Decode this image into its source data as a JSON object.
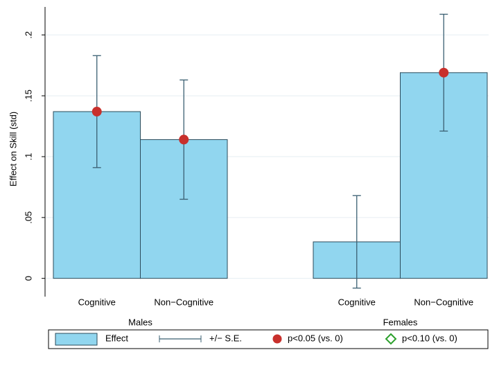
{
  "chart_data": {
    "type": "bar",
    "ylabel": "Effect on Skill (std)",
    "ylim": [
      -0.015,
      0.223
    ],
    "yticks": [
      0,
      {
        "value": 0.05,
        "label": ".05"
      },
      {
        "value": 0.1,
        "label": ".1"
      },
      {
        "value": 0.15,
        "label": ".15"
      },
      {
        "value": 0.2,
        "label": ".2"
      }
    ],
    "groups": [
      {
        "name": "Males",
        "categories": [
          "Cognitive",
          "Non−Cognitive"
        ],
        "values": [
          0.137,
          0.114
        ],
        "errors": [
          0.046,
          0.049
        ],
        "p05": [
          true,
          true
        ]
      },
      {
        "name": "Females",
        "categories": [
          "Cognitive",
          "Non−Cognitive"
        ],
        "values": [
          0.03,
          0.169
        ],
        "errors": [
          0.038,
          0.048
        ],
        "p05": [
          false,
          true
        ]
      }
    ],
    "colors": {
      "bar": "#91d6ef",
      "error": "#3a5f72",
      "p05": "#c8302c",
      "p10": "#2ca02c"
    },
    "legend": [
      "Effect",
      "+/− S.E.",
      "p<0.05 (vs. 0)",
      "p<0.10 (vs. 0)"
    ]
  }
}
